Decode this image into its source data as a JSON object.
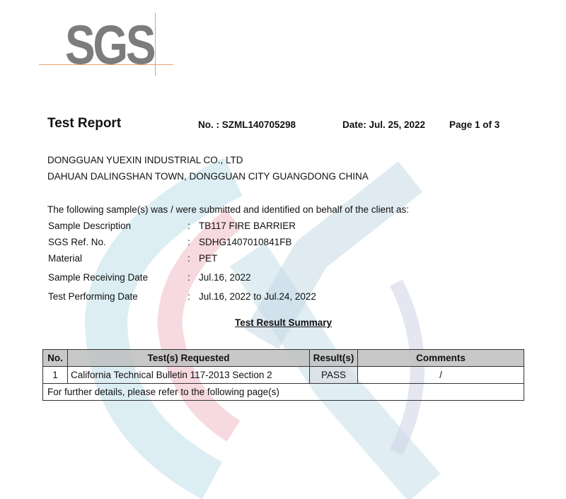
{
  "logo": {
    "text": "SGS",
    "accent_color": "#e8a070",
    "text_color": "#7c7c7c"
  },
  "header": {
    "title": "Test Report",
    "number": "No. : SZML140705298",
    "date": "Date: Jul. 25, 2022",
    "page": "Page 1 of  3"
  },
  "client": {
    "name": "DONGGUAN YUEXIN INDUSTRIAL CO., LTD",
    "address": "DAHUAN DALINGSHAN TOWN, DONGGUAN CITY GUANGDONG CHINA"
  },
  "intro": "The following sample(s) was / were submitted and identified on behalf of the client as:",
  "sample_fields": [
    {
      "label": "Sample Description",
      "value": "TB117 FIRE BARRIER"
    },
    {
      "label": "SGS Ref. No.",
      "value": "SDHG1407010841FB"
    },
    {
      "label": "Material",
      "value": "PET"
    },
    {
      "label": "Sample Receiving Date",
      "value": "Jul.16, 2022"
    },
    {
      "label": "Test Performing Date",
      "value": "Jul.16, 2022 to Jul.24, 2022"
    }
  ],
  "summary": {
    "title": "Test Result Summary",
    "columns": [
      "No.",
      "Test(s) Requested",
      "Result(s)",
      "Comments"
    ],
    "rows": [
      {
        "no": "1",
        "test": "California Technical Bulletin 117-2013 Section 2",
        "result": "PASS",
        "comments": "/"
      }
    ],
    "footer": "For further details, please refer to the following page(s)"
  }
}
